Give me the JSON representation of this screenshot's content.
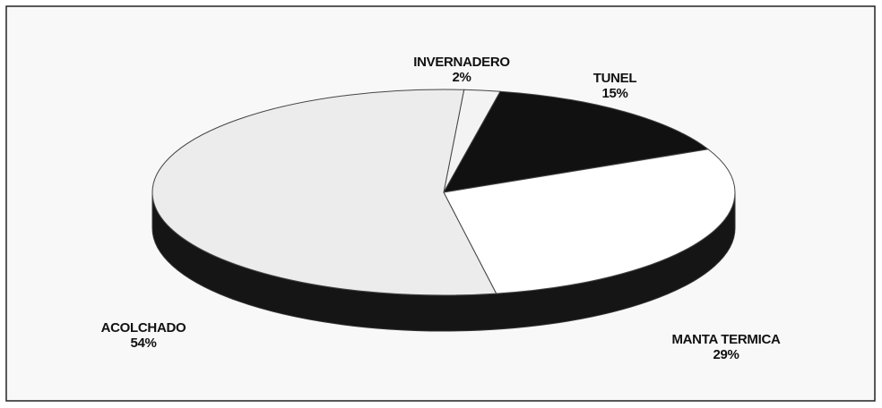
{
  "chart_data": {
    "type": "pie",
    "categories": [
      "INVERNADERO",
      "TUNEL",
      "MANTA TERMICA",
      "ACOLCHADO"
    ],
    "values": [
      2,
      15,
      29,
      54
    ],
    "value_labels": [
      "2%",
      "15%",
      "29%",
      "54%"
    ],
    "colors": [
      "#f3f3f3",
      "#111111",
      "#ffffff",
      "#ececec"
    ]
  }
}
